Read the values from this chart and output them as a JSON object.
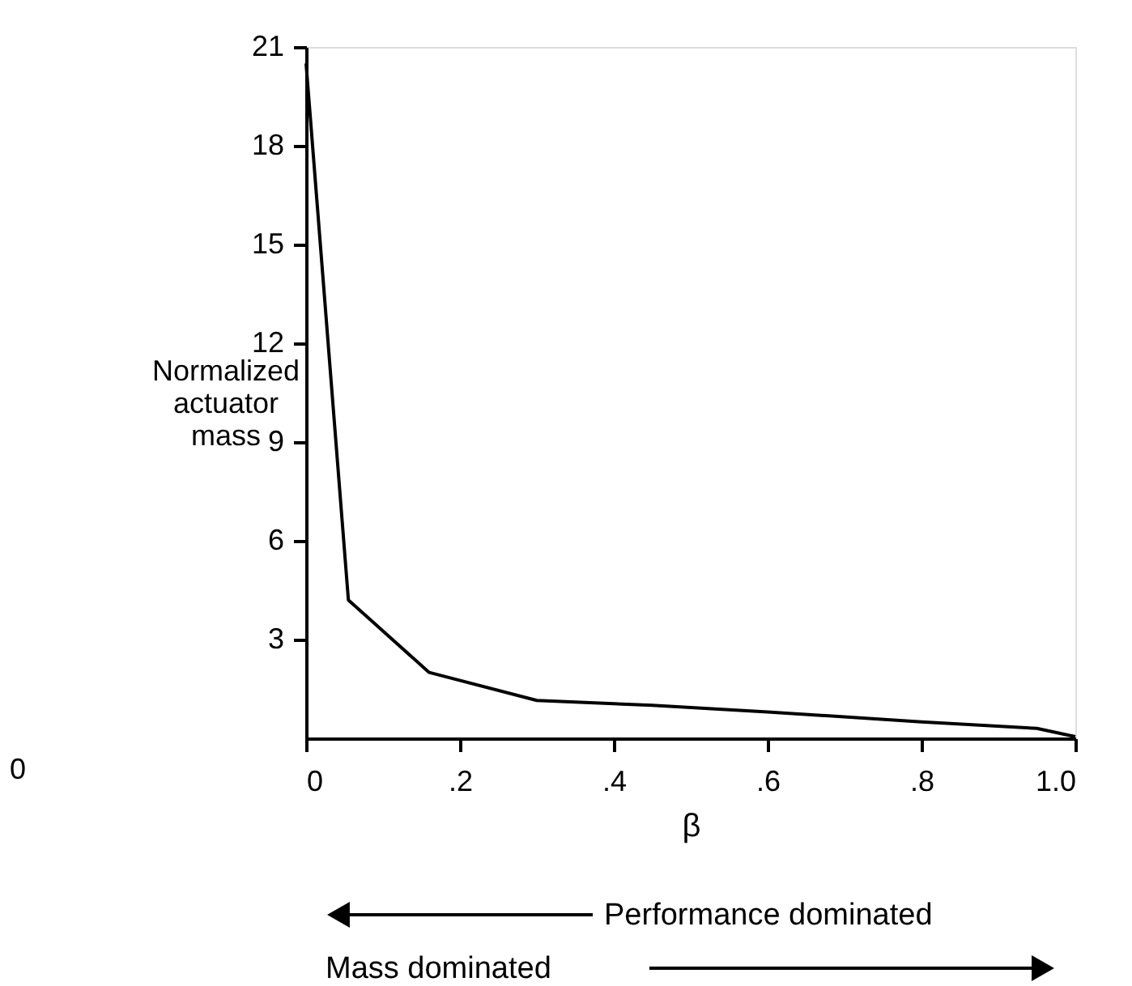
{
  "chart_data": {
    "type": "line",
    "xlabel": "β",
    "ylabel": "Normalized actuator mass",
    "x": [
      0,
      0.055,
      0.16,
      0.3,
      0.45,
      0.6,
      0.8,
      0.95,
      1.0
    ],
    "series": [
      {
        "color": "#000000",
        "values": [
          20.5,
          4.2,
          2.0,
          1.15,
          1.0,
          0.8,
          0.5,
          0.3,
          0.05
        ]
      }
    ],
    "xlim": [
      0,
      1.0
    ],
    "xticks": [
      0,
      {
        "value": 0.2,
        "label": ".2"
      },
      {
        "value": 0.4,
        "label": ".4"
      },
      {
        "value": 0.6,
        "label": ".6"
      },
      {
        "value": 0.8,
        "label": ".8"
      },
      {
        "value": 1.0,
        "label": "1.0"
      }
    ],
    "ylim": [
      0,
      21
    ],
    "yticks": [
      3,
      6,
      9,
      12,
      15,
      18,
      21
    ],
    "grid": false,
    "marker": "none",
    "line_style": "solid",
    "annotations": [
      "Performance dominated",
      "Mass dominated",
      "0"
    ]
  }
}
